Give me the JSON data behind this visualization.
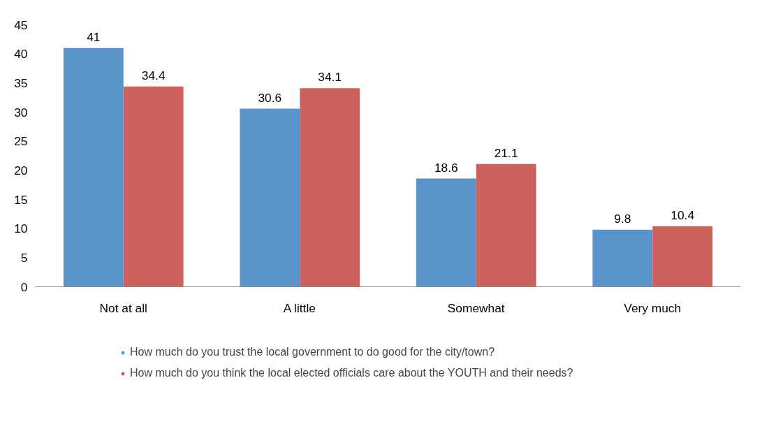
{
  "chart_data": {
    "type": "bar",
    "categories": [
      "Not at all",
      "A little",
      "Somewhat",
      "Very much"
    ],
    "series": [
      {
        "name": "How much do you trust the local government to do good for the city/town?",
        "color": "#5b93cb",
        "values": [
          41,
          30.6,
          18.6,
          9.8
        ]
      },
      {
        "name": "How much do you think the local elected officials care about the YOUTH and their needs?",
        "color": "#cd625c",
        "values": [
          34.4,
          34.1,
          21.1,
          10.4
        ]
      }
    ],
    "ylim": [
      0,
      45
    ],
    "yticks": [
      0,
      5,
      10,
      15,
      20,
      25,
      30,
      35,
      40,
      45
    ],
    "grid": false,
    "legend": "bottom",
    "data_labels": true
  }
}
